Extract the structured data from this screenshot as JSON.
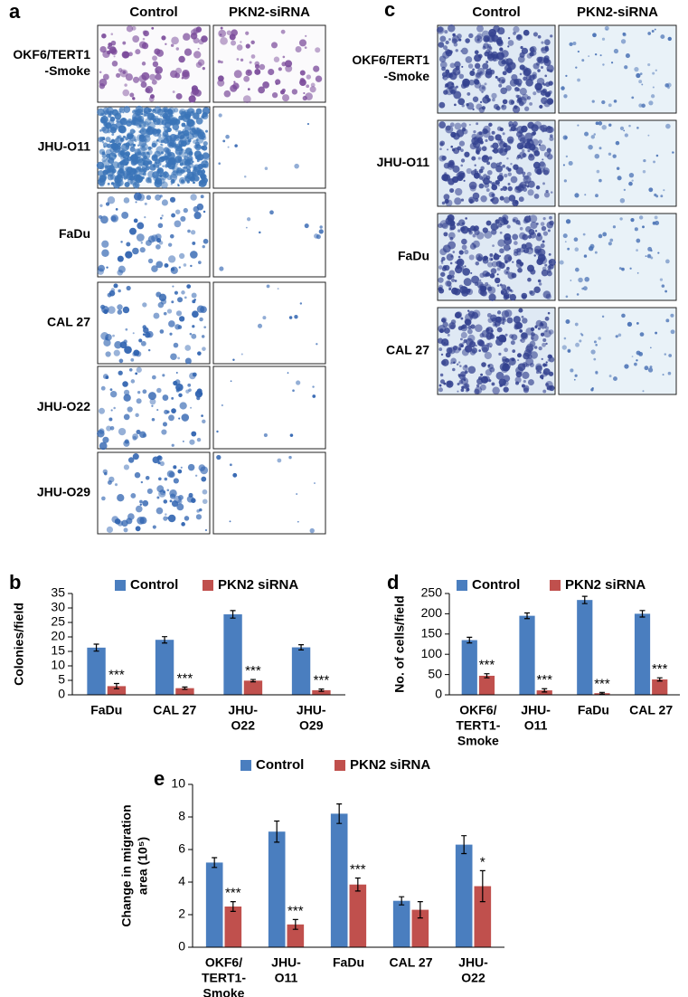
{
  "panel_a": {
    "letter": "a",
    "columns": [
      "Control",
      "PKN2-siRNA"
    ],
    "rows": [
      [
        "OKF6/TERT1",
        "-Smoke"
      ],
      [
        "JHU-O11"
      ],
      [
        "FaDu"
      ],
      [
        "CAL 27"
      ],
      [
        "JHU-O22"
      ],
      [
        "JHU-O29"
      ]
    ]
  },
  "panel_c": {
    "letter": "c",
    "columns": [
      "Control",
      "PKN2-siRNA"
    ],
    "rows": [
      [
        "OKF6/TERT1",
        "-Smoke"
      ],
      [
        "JHU-O11"
      ],
      [
        "FaDu"
      ],
      [
        "CAL 27"
      ]
    ]
  },
  "chart_data": [
    {
      "type": "bar",
      "letter": "b",
      "y_label": [
        "Colonies/field"
      ],
      "categories": [
        [
          "FaDu"
        ],
        [
          "CAL 27"
        ],
        [
          "JHU-",
          "O22"
        ],
        [
          "JHU-",
          "O29"
        ]
      ],
      "series": [
        {
          "name": "Control",
          "color": "#4a7ebf",
          "values": [
            16.3,
            19,
            27.8,
            16.4
          ],
          "errors": [
            1.2,
            1.1,
            1.3,
            0.9
          ]
        },
        {
          "name": "PKN2 siRNA",
          "color": "#c0504d",
          "values": [
            3,
            2.3,
            4.9,
            1.6
          ],
          "errors": [
            0.9,
            0.4,
            0.4,
            0.4
          ],
          "annotations": [
            "***",
            "***",
            "***",
            "***"
          ]
        }
      ],
      "ylim": [
        0,
        35
      ],
      "yticks": [
        0,
        5,
        10,
        15,
        20,
        25,
        30,
        35
      ]
    },
    {
      "type": "bar",
      "letter": "d",
      "y_label": [
        "No. of cells/field"
      ],
      "categories": [
        [
          "OKF6/",
          "TERT1-",
          "Smoke"
        ],
        [
          "JHU-",
          "O11"
        ],
        [
          "FaDu"
        ],
        [
          "CAL 27"
        ]
      ],
      "series": [
        {
          "name": "Control",
          "color": "#4a7ebf",
          "values": [
            135,
            195,
            234,
            200
          ],
          "errors": [
            7,
            7,
            9,
            8
          ]
        },
        {
          "name": "PKN2 siRNA",
          "color": "#c0504d",
          "values": [
            47,
            11,
            4,
            38
          ],
          "errors": [
            5,
            4,
            2,
            4
          ],
          "annotations": [
            "***",
            "***",
            "***",
            "***"
          ]
        }
      ],
      "ylim": [
        0,
        250
      ],
      "yticks": [
        0,
        50,
        100,
        150,
        200,
        250
      ]
    },
    {
      "type": "bar",
      "letter": "e",
      "y_label": [
        "Change in migration",
        "area (10⁵)"
      ],
      "categories": [
        [
          "OKF6/",
          "TERT1-",
          "Smoke"
        ],
        [
          "JHU-",
          "O11"
        ],
        [
          "FaDu"
        ],
        [
          "CAL 27"
        ],
        [
          "JHU-",
          "O22"
        ]
      ],
      "series": [
        {
          "name": "Control",
          "color": "#4a7ebf",
          "values": [
            5.2,
            7.1,
            8.2,
            2.85,
            6.3
          ],
          "errors": [
            0.3,
            0.65,
            0.6,
            0.25,
            0.55
          ]
        },
        {
          "name": "PKN2 siRNA",
          "color": "#c0504d",
          "values": [
            2.5,
            1.4,
            3.85,
            2.3,
            3.75
          ],
          "errors": [
            0.3,
            0.3,
            0.4,
            0.5,
            0.95
          ],
          "annotations": [
            "***",
            "***",
            "***",
            null,
            "*"
          ]
        }
      ],
      "ylim": [
        0,
        10
      ],
      "yticks": [
        0,
        2,
        4,
        6,
        8,
        10
      ]
    }
  ]
}
